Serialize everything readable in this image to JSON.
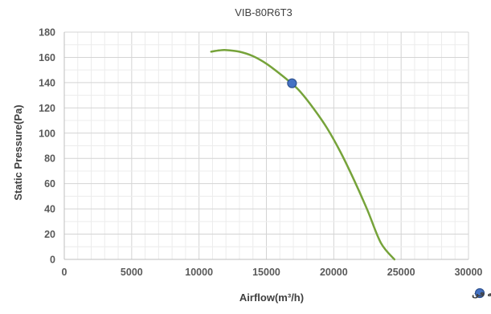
{
  "chart_data": {
    "type": "line",
    "title": "VIB-80R6T3",
    "xlabel": "Airflow(m³/h)",
    "ylabel": "Static Pressure(Pa)",
    "xlim": [
      0,
      30000
    ],
    "ylim": [
      0,
      180
    ],
    "x_ticks": [
      "0",
      "5000",
      "10000",
      "15000",
      "20000",
      "25000",
      "30000"
    ],
    "y_ticks": [
      "0",
      "20",
      "40",
      "60",
      "80",
      "100",
      "120",
      "140",
      "160",
      "180"
    ],
    "grid": true,
    "legend_position": "bottom-right",
    "series": [
      {
        "color": "#76a33a",
        "x": [
          10900,
          11500,
          12000,
          13000,
          14000,
          15000,
          16000,
          16800,
          17500,
          18500,
          19500,
          20500,
          21500,
          22500,
          23500,
          24500
        ],
        "y": [
          164.5,
          165.5,
          165.8,
          164.5,
          161,
          155,
          147,
          140,
          133,
          119.5,
          104,
          85,
          63,
          39,
          13,
          0
        ]
      }
    ],
    "points": [
      {
        "name": "نقطه عملکرد بهینه فن",
        "x": 16900,
        "y": 139.5,
        "color": "#4472c4"
      }
    ],
    "legend": [
      {
        "label": "نقطه عملکرد بهینه فن",
        "marker": "circle",
        "color": "#4472c4"
      }
    ]
  }
}
